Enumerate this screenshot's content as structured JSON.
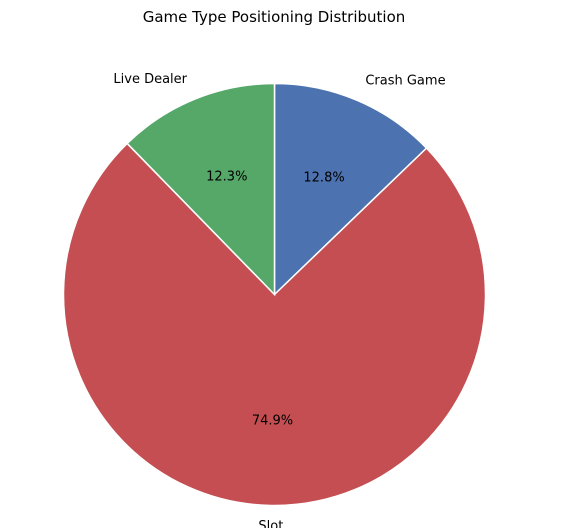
{
  "chart_data": {
    "type": "pie",
    "title": "Game Type Positioning Distribution",
    "start_angle_deg": 90,
    "direction": "clockwise",
    "slices": [
      {
        "label": "Crash Game",
        "value": 12.8,
        "pct_label": "12.8%",
        "color": "#4c72b0"
      },
      {
        "label": "Slot",
        "value": 74.9,
        "pct_label": "74.9%",
        "color": "#c44e52"
      },
      {
        "label": "Live Dealer",
        "value": 12.3,
        "pct_label": "12.3%",
        "color": "#55a868"
      }
    ]
  }
}
